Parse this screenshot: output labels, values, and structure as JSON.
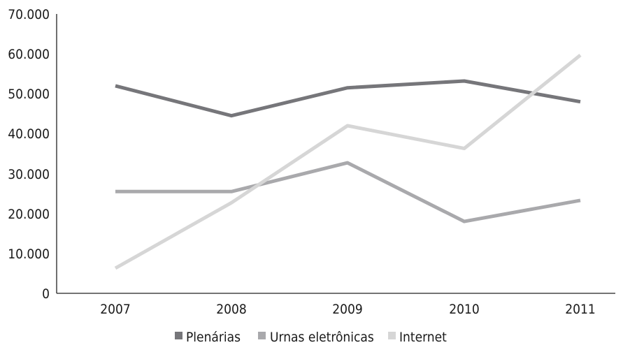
{
  "chart_data": {
    "type": "line",
    "title": "",
    "xlabel": "",
    "ylabel": "",
    "categories": [
      "2007",
      "2008",
      "2009",
      "2010",
      "2011"
    ],
    "y_tick_labels": [
      "0",
      "10.000",
      "20.000",
      "30.000",
      "40.000",
      "50.000",
      "60.000",
      "70.000"
    ],
    "ylim": [
      0,
      70000
    ],
    "grid": false,
    "legend_position": "bottom",
    "series": [
      {
        "name": "Plenárias",
        "color": "#76767a",
        "values": [
          52000,
          44500,
          51500,
          53200,
          48000
        ]
      },
      {
        "name": "Urnas eletrônicas",
        "color": "#a9a9ac",
        "values": [
          25500,
          25500,
          32700,
          18000,
          23300
        ]
      },
      {
        "name": "Internet",
        "color": "#d6d6d6",
        "values": [
          6300,
          22700,
          42000,
          36300,
          59700
        ]
      }
    ]
  }
}
